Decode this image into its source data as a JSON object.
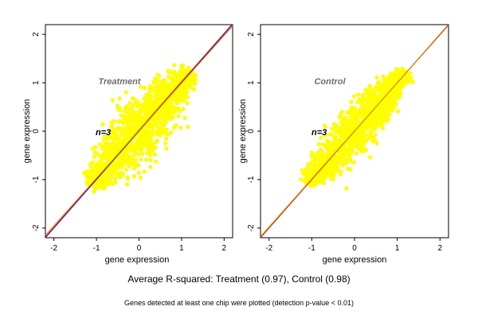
{
  "chart_data": [
    {
      "type": "scatter",
      "title": "Treatment",
      "annotation": "n=3",
      "xlabel": "gene expression",
      "ylabel": "gene expression",
      "xlim": [
        -2.2,
        2.2
      ],
      "ylim": [
        -2.2,
        2.2
      ],
      "xticks": [
        -2,
        -1,
        0,
        1,
        2
      ],
      "yticks": [
        -2,
        -1,
        0,
        1,
        2
      ],
      "grid": false,
      "cloud": {
        "xmin": -1.1,
        "xmax": 1.2,
        "spread": 0.28,
        "outlier_color": "#1212dd",
        "point_color": "#ffff00"
      },
      "lines": [
        {
          "slope": 1.0,
          "intercept": 0.0,
          "color": "#1a1aff"
        },
        {
          "slope": 1.0,
          "intercept": 0.02,
          "color": "#cc1010"
        },
        {
          "slope": 0.98,
          "intercept": 0.01,
          "color": "#d99a00"
        }
      ]
    },
    {
      "type": "scatter",
      "title": "Control",
      "annotation": "n=3",
      "xlabel": "gene expression",
      "ylabel": "gene expression",
      "xlim": [
        -2.2,
        2.2
      ],
      "ylim": [
        -2.2,
        2.2
      ],
      "xticks": [
        -2,
        -1,
        0,
        1,
        2
      ],
      "yticks": [
        -2,
        -1,
        0,
        1,
        2
      ],
      "grid": false,
      "cloud": {
        "xmin": -1.1,
        "xmax": 1.2,
        "spread": 0.22,
        "outlier_color": "#e00000",
        "point_color": "#ffff00"
      },
      "lines": [
        {
          "slope": 1.0,
          "intercept": 0.0,
          "color": "#cc1010"
        },
        {
          "slope": 0.99,
          "intercept": 0.005,
          "color": "#d99a00"
        }
      ]
    }
  ],
  "summary": "Average R-squared: Treatment (0.97), Control (0.98)",
  "footnote": "Genes detected at least one chip were plotted (detection p-value < 0.01)"
}
